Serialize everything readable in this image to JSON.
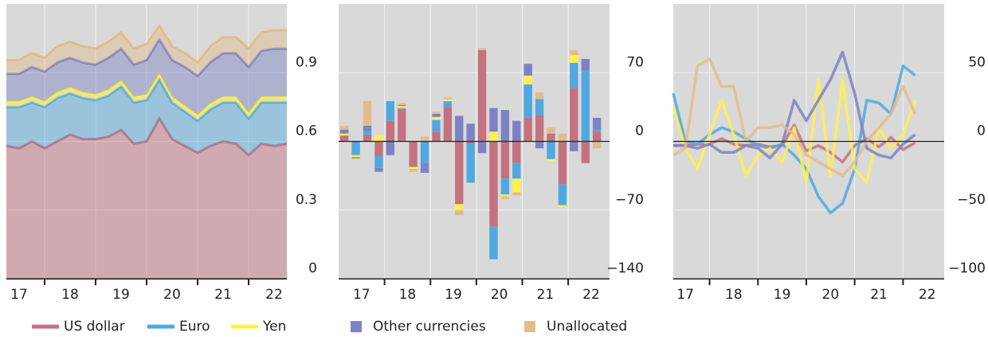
{
  "chart_data": [
    {
      "type": "area",
      "stacked": true,
      "x": [
        17.25,
        17.5,
        17.75,
        18,
        18.25,
        18.5,
        18.75,
        19,
        19.25,
        19.5,
        19.75,
        20,
        20.25,
        20.5,
        20.75,
        21,
        21.25,
        21.5,
        21.75,
        22,
        22.25,
        22.5,
        22.75
      ],
      "xlim": [
        17.25,
        22.75
      ],
      "xticks": [
        {
          "value": 17.5,
          "label": "17"
        },
        {
          "value": 18.5,
          "label": "18"
        },
        {
          "value": 19.5,
          "label": "19"
        },
        {
          "value": 20.5,
          "label": "20"
        },
        {
          "value": 21.5,
          "label": "21"
        },
        {
          "value": 22.5,
          "label": "22"
        }
      ],
      "x_boundary_ticks": [
        18,
        19,
        20,
        21,
        22
      ],
      "ylim": [
        0,
        1.2
      ],
      "yticks": [
        0,
        0.3,
        0.6,
        0.9
      ],
      "grid": true,
      "series": [
        {
          "color": "#c4727f",
          "values": [
            0.58,
            0.57,
            0.6,
            0.57,
            0.6,
            0.63,
            0.61,
            0.61,
            0.62,
            0.65,
            0.59,
            0.6,
            0.7,
            0.61,
            0.58,
            0.55,
            0.58,
            0.6,
            0.59,
            0.54,
            0.59,
            0.58,
            0.59
          ]
        },
        {
          "color": "#4fa8e0",
          "values": [
            0.17,
            0.18,
            0.17,
            0.18,
            0.19,
            0.18,
            0.18,
            0.17,
            0.18,
            0.19,
            0.18,
            0.18,
            0.17,
            0.16,
            0.15,
            0.14,
            0.16,
            0.17,
            0.18,
            0.16,
            0.18,
            0.19,
            0.18
          ]
        },
        {
          "color": "#fff04d",
          "values": [
            0.025,
            0.025,
            0.025,
            0.025,
            0.025,
            0.025,
            0.025,
            0.025,
            0.025,
            0.025,
            0.025,
            0.025,
            0.025,
            0.025,
            0.025,
            0.025,
            0.025,
            0.025,
            0.025,
            0.025,
            0.025,
            0.025,
            0.025
          ]
        },
        {
          "color": "#7d82c4",
          "values": [
            0.12,
            0.12,
            0.13,
            0.13,
            0.13,
            0.13,
            0.13,
            0.13,
            0.14,
            0.14,
            0.14,
            0.15,
            0.15,
            0.16,
            0.17,
            0.17,
            0.18,
            0.19,
            0.19,
            0.2,
            0.2,
            0.21,
            0.21
          ]
        },
        {
          "color": "#e2bc8a",
          "values": [
            0.06,
            0.06,
            0.06,
            0.06,
            0.07,
            0.07,
            0.07,
            0.07,
            0.07,
            0.07,
            0.07,
            0.07,
            0.06,
            0.06,
            0.06,
            0.06,
            0.07,
            0.07,
            0.07,
            0.08,
            0.08,
            0.08,
            0.08
          ]
        }
      ]
    },
    {
      "type": "bar",
      "stacked": true,
      "x": [
        17.125,
        17.375,
        17.625,
        17.875,
        18.125,
        18.375,
        18.625,
        18.875,
        19.125,
        19.375,
        19.625,
        19.875,
        20.125,
        20.375,
        20.625,
        20.875,
        21.125,
        21.375,
        21.625,
        21.875,
        22.125,
        22.375,
        22.625
      ],
      "xlim": [
        17,
        22.9
      ],
      "xticks": [
        {
          "value": 17.5,
          "label": "17"
        },
        {
          "value": 18.5,
          "label": "18"
        },
        {
          "value": 19.5,
          "label": "19"
        },
        {
          "value": 20.5,
          "label": "20"
        },
        {
          "value": 21.5,
          "label": "21"
        },
        {
          "value": 22.5,
          "label": "22"
        }
      ],
      "x_boundary_ticks": [
        18,
        19,
        20,
        21,
        22
      ],
      "ylim": [
        -140,
        140
      ],
      "yticks": [
        70,
        0,
        {
          "value": -70,
          "label": "−70"
        },
        {
          "value": -140,
          "label": "−140"
        }
      ],
      "grid": true,
      "series": [
        {
          "color": "#c4727f",
          "values": [
            6,
            0,
            7,
            -15,
            21,
            33,
            -26,
            0,
            10,
            35,
            -64,
            -2,
            93,
            -87,
            -38,
            -22,
            24,
            27,
            8,
            -44,
            54,
            -22,
            10
          ]
        },
        {
          "color": "#4fa8e0",
          "values": [
            0,
            -14,
            4,
            -12,
            20,
            1,
            0,
            -22,
            12,
            6,
            0,
            -40,
            0,
            -33,
            -16,
            -16,
            34,
            16,
            -18,
            -21,
            26,
            72,
            2
          ]
        },
        {
          "color": "#fff04d",
          "values": [
            2,
            -2,
            0,
            6,
            0,
            2,
            -2,
            0,
            3,
            2,
            -6,
            0,
            0,
            10,
            -2,
            -14,
            9,
            0,
            -2,
            -2,
            8,
            0,
            0
          ]
        },
        {
          "color": "#7d82c4",
          "values": [
            4,
            -1,
            5,
            -4,
            -14,
            1,
            0,
            -10,
            3,
            0,
            26,
            18,
            -12,
            24,
            32,
            21,
            12,
            -7,
            0,
            0,
            -10,
            12,
            12
          ]
        },
        {
          "color": "#e2bc8a",
          "values": [
            4,
            -1,
            25,
            0,
            0,
            2,
            -3,
            5,
            2,
            2,
            -5,
            0,
            2,
            0,
            -3,
            -3,
            0,
            7,
            6,
            8,
            5,
            0,
            -7
          ]
        }
      ]
    },
    {
      "type": "line",
      "x": [
        17.25,
        17.5,
        17.75,
        18,
        18.25,
        18.5,
        18.75,
        19,
        19.25,
        19.5,
        19.75,
        20,
        20.25,
        20.5,
        20.75,
        21,
        21.25,
        21.5,
        21.75,
        22,
        22.25
      ],
      "xlim": [
        17.25,
        22.85
      ],
      "xticks": [
        {
          "value": 17.5,
          "label": "17"
        },
        {
          "value": 18.5,
          "label": "18"
        },
        {
          "value": 19.5,
          "label": "19"
        },
        {
          "value": 20.5,
          "label": "20"
        },
        {
          "value": 21.5,
          "label": "21"
        },
        {
          "value": 22.5,
          "label": "22"
        }
      ],
      "x_boundary_ticks": [
        18,
        19,
        20,
        21,
        22
      ],
      "ylim": [
        -100,
        100
      ],
      "yticks": [
        50,
        0,
        {
          "value": -50,
          "label": "−50"
        },
        {
          "value": -100,
          "label": "−100"
        }
      ],
      "grid": true,
      "series": [
        {
          "color": "#c4727f",
          "values": [
            -3,
            -3,
            -2,
            -2,
            2,
            -2,
            -3,
            -2,
            -4,
            -3,
            12,
            -7,
            -3,
            -8,
            -15,
            -3,
            2,
            -4,
            3,
            -6,
            -1
          ]
        },
        {
          "color": "#4fa8e0",
          "values": [
            35,
            0,
            -2,
            5,
            10,
            7,
            2,
            -3,
            -5,
            -2,
            -10,
            -20,
            -40,
            -52,
            -45,
            -20,
            30,
            28,
            20,
            55,
            48
          ]
        },
        {
          "color": "#fff04d",
          "values": [
            25,
            -5,
            -20,
            5,
            30,
            5,
            -25,
            -10,
            -5,
            -15,
            10,
            -30,
            45,
            -25,
            45,
            -20,
            -30,
            10,
            -5,
            5,
            30
          ]
        },
        {
          "color": "#7d82c4",
          "values": [
            -3,
            -3,
            -5,
            -2,
            -8,
            -8,
            -3,
            -5,
            -12,
            -2,
            30,
            15,
            30,
            45,
            65,
            35,
            -5,
            -10,
            -12,
            -2,
            5
          ]
        },
        {
          "color": "#e2bc8a",
          "values": [
            -10,
            -5,
            55,
            60,
            40,
            40,
            0,
            10,
            10,
            12,
            5,
            -10,
            -15,
            -20,
            -25,
            -15,
            0,
            10,
            20,
            40,
            20
          ]
        }
      ]
    }
  ],
  "legend": {
    "items": [
      {
        "name": "US dollar",
        "marker": "line"
      },
      {
        "name": "Euro",
        "marker": "line"
      },
      {
        "name": "Yen",
        "marker": "line"
      },
      {
        "name": "Other currencies",
        "marker": "square"
      },
      {
        "name": "Unallocated",
        "marker": "square"
      }
    ]
  }
}
